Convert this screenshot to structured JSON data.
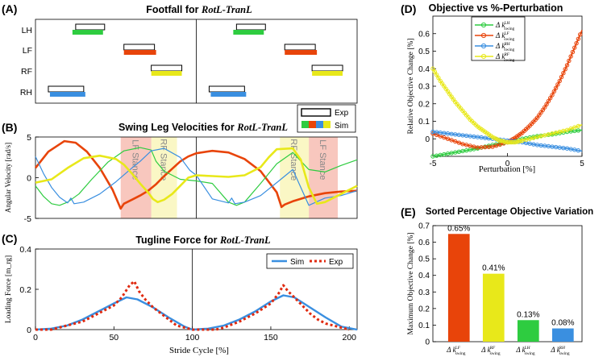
{
  "chart_data": [
    {
      "panel": "(A)",
      "type": "gantt",
      "title_prefix": "Footfall for ",
      "title_em": "RotL-TranL",
      "rows": [
        "LH",
        "LF",
        "RF",
        "RH"
      ],
      "xlim": [
        0,
        200
      ],
      "legend": [
        "Exp",
        "Sim"
      ],
      "legend_sim_colors": [
        "#2ecc40",
        "#e8440a",
        "#3a8fe0",
        "#e8e81a"
      ],
      "row_colors": {
        "LH": "#2ecc40",
        "LF": "#e8440a",
        "RF": "#e8e81a",
        "RH": "#3a8fe0"
      },
      "exp_intervals": {
        "LH": [
          [
            25,
            43
          ],
          [
            125,
            143
          ]
        ],
        "LF": [
          [
            55,
            74
          ],
          [
            155,
            174
          ]
        ],
        "RF": [
          [
            72,
            91
          ],
          [
            172,
            191
          ]
        ],
        "RH": [
          [
            8,
            30
          ],
          [
            108,
            130
          ]
        ]
      },
      "sim_intervals": {
        "LH": [
          [
            23,
            42
          ],
          [
            123,
            142
          ]
        ],
        "LF": [
          [
            55,
            75
          ],
          [
            155,
            175
          ]
        ],
        "RF": [
          [
            72,
            91
          ],
          [
            172,
            191
          ]
        ],
        "RH": [
          [
            9,
            31
          ],
          [
            109,
            131
          ]
        ]
      }
    },
    {
      "panel": "(B)",
      "type": "line",
      "title_prefix": "Swing Leg Velocities for ",
      "title_em": "RotL-TranL",
      "ylabel": "Angular Velocity [rad/s]",
      "xlim": [
        0,
        200
      ],
      "ylim": [
        -5,
        5
      ],
      "yticks": [
        -5,
        0,
        5
      ],
      "stance_labels": [
        "LF Stance",
        "RF Stance",
        "RF Stance",
        "LF Stance"
      ],
      "stance_spans": [
        [
          53,
          72
        ],
        [
          72,
          88
        ],
        [
          152,
          170
        ],
        [
          170,
          188
        ]
      ],
      "series": [
        {
          "name": "LF",
          "color": "#e8440a",
          "width": 2.6,
          "x": [
            0,
            8,
            18,
            25,
            32,
            40,
            48,
            53,
            55,
            60,
            65,
            70,
            75,
            80,
            85,
            90,
            95,
            100,
            110,
            120,
            130,
            140,
            150,
            153,
            155,
            160,
            170,
            180,
            190,
            200
          ],
          "y": [
            1.2,
            3.2,
            4.5,
            4.3,
            3.2,
            1.2,
            -1.5,
            -3.8,
            -3.2,
            -2.7,
            -2.2,
            -1.6,
            -0.8,
            0.2,
            1.1,
            2.0,
            2.6,
            3.0,
            3.3,
            3.1,
            2.3,
            0.8,
            -1.8,
            -3.6,
            -3.3,
            -2.9,
            -2.3,
            -1.9,
            -1.7,
            -1.6
          ]
        },
        {
          "name": "LH",
          "color": "#2ecc40",
          "width": 1.2,
          "x": [
            0,
            5,
            10,
            15,
            20,
            27,
            35,
            45,
            55,
            65,
            72,
            75,
            80,
            90,
            100,
            110,
            120,
            125,
            130,
            140,
            150,
            160,
            170,
            180,
            190,
            200
          ],
          "y": [
            -1.0,
            -2.3,
            -3.2,
            -3.4,
            -3.0,
            -2.0,
            -0.2,
            1.9,
            3.3,
            3.7,
            3.4,
            2.0,
            0.8,
            -0.2,
            -0.4,
            -0.7,
            -3.0,
            -3.4,
            -3.0,
            -0.7,
            1.7,
            3.1,
            1.0,
            0.7,
            1.5,
            2.2
          ]
        },
        {
          "name": "RH",
          "color": "#3a8fe0",
          "width": 1.2,
          "x": [
            0,
            5,
            10,
            15,
            20,
            22,
            24,
            30,
            40,
            50,
            60,
            65,
            72,
            80,
            90,
            96,
            100,
            110,
            120,
            122,
            124,
            130,
            140,
            150,
            160,
            170,
            180,
            190,
            200
          ],
          "y": [
            2.6,
            0.5,
            -1.2,
            -2.4,
            -3.1,
            -2.5,
            -3.2,
            -3.0,
            -2.0,
            -0.5,
            1.2,
            2.0,
            3.3,
            3.6,
            2.5,
            0.9,
            0.3,
            -2.6,
            -3.1,
            -2.5,
            -3.2,
            -3.0,
            -2.2,
            -0.6,
            1.0,
            -3.4,
            -2.5,
            -2.2,
            -1.6
          ]
        },
        {
          "name": "RF",
          "color": "#e8e81a",
          "width": 2.6,
          "x": [
            0,
            10,
            20,
            30,
            40,
            50,
            55,
            60,
            65,
            70,
            73,
            76,
            80,
            85,
            90,
            95,
            100,
            110,
            120,
            130,
            140,
            145,
            150,
            160,
            165,
            170,
            175,
            180,
            190,
            200
          ],
          "y": [
            -0.6,
            -0.2,
            1.2,
            2.4,
            2.7,
            2.3,
            1.6,
            0.5,
            -0.7,
            -1.8,
            -2.6,
            -3.0,
            -2.7,
            -2.0,
            -1.0,
            0.0,
            0.3,
            0.2,
            0.1,
            0.3,
            1.3,
            2.5,
            3.5,
            3.6,
            2.2,
            -1.2,
            -3.2,
            -3.0,
            -2.0,
            -1.0
          ]
        }
      ]
    },
    {
      "panel": "(C)",
      "type": "line",
      "title_prefix": "Tugline Force for ",
      "title_em": "RotL-TranL",
      "xlabel": "Stride Cycle  [%]",
      "ylabel": "Loading Force [m_rg]",
      "xlim": [
        0,
        205
      ],
      "ylim": [
        0,
        0.4
      ],
      "yticks": [
        0,
        0.2,
        0.4
      ],
      "xticks": [
        0,
        50,
        100,
        150,
        200
      ],
      "legend": [
        "Sim",
        "Exp"
      ],
      "series": [
        {
          "name": "Sim",
          "color": "#3a8fe0",
          "style": "solid",
          "x": [
            0,
            10,
            20,
            30,
            40,
            50,
            58,
            65,
            75,
            85,
            95,
            100,
            110,
            120,
            130,
            140,
            150,
            158,
            165,
            175,
            185,
            195,
            205
          ],
          "y": [
            0.0,
            0.005,
            0.02,
            0.05,
            0.09,
            0.13,
            0.16,
            0.15,
            0.11,
            0.06,
            0.015,
            0.0,
            0.005,
            0.02,
            0.05,
            0.09,
            0.14,
            0.17,
            0.16,
            0.11,
            0.06,
            0.015,
            0.0
          ]
        },
        {
          "name": "Exp",
          "color": "#e02a10",
          "style": "dotted",
          "x": [
            0,
            10,
            20,
            30,
            40,
            50,
            55,
            60,
            63,
            66,
            70,
            75,
            80,
            85,
            90,
            95,
            100,
            105,
            110,
            115,
            120,
            130,
            140,
            150,
            155,
            158,
            161,
            165,
            170,
            175,
            180,
            185,
            190,
            195,
            200
          ],
          "y": [
            0.0,
            0.0,
            0.02,
            0.04,
            0.08,
            0.12,
            0.16,
            0.22,
            0.24,
            0.19,
            0.15,
            0.11,
            0.08,
            0.05,
            0.02,
            0.01,
            0.0,
            0.0,
            0.0,
            0.0,
            0.01,
            0.04,
            0.08,
            0.13,
            0.18,
            0.22,
            0.19,
            0.16,
            0.12,
            0.08,
            0.05,
            0.03,
            0.02,
            0.01,
            0.0
          ]
        }
      ]
    },
    {
      "panel": "(D)",
      "type": "line",
      "title": "Objective vs %-Perturbation",
      "xlabel": "Perturbation  [%]",
      "ylabel": "Relative Objective Change [%]",
      "xlim": [
        -5,
        5
      ],
      "ylim": [
        -0.1,
        0.7
      ],
      "yticks": [
        0,
        0.1,
        0.2,
        0.3,
        0.4,
        0.5,
        0.6
      ],
      "xticks": [
        -5,
        0,
        5
      ],
      "legend": [
        "Δk LH swing",
        "Δk LF swing",
        "Δk RH swing",
        "Δk RF swing"
      ],
      "series": [
        {
          "name": "Δk LH swing",
          "color": "#2ecc40",
          "marker": "circle",
          "x": [
            -5,
            -4,
            -3,
            -2,
            -1,
            0,
            1,
            2,
            3,
            4,
            5
          ],
          "y": [
            -0.1,
            -0.085,
            -0.07,
            -0.055,
            -0.035,
            -0.02,
            0.0,
            0.015,
            0.025,
            0.04,
            0.05
          ]
        },
        {
          "name": "Δk LF swing",
          "color": "#e8440a",
          "marker": "circle",
          "x": [
            -5,
            -4,
            -3,
            -2,
            -1,
            0,
            0.5,
            1,
            1.5,
            2,
            2.5,
            3,
            3.5,
            4,
            4.5,
            5
          ],
          "y": [
            0.03,
            0.0,
            -0.03,
            -0.05,
            -0.045,
            -0.02,
            0.005,
            0.035,
            0.075,
            0.12,
            0.18,
            0.25,
            0.33,
            0.42,
            0.52,
            0.62
          ]
        },
        {
          "name": "Δk RH swing",
          "color": "#3a8fe0",
          "marker": "circle",
          "x": [
            -5,
            -4,
            -3,
            -2,
            -1,
            0,
            1,
            2,
            3,
            4,
            5
          ],
          "y": [
            0.04,
            0.03,
            0.02,
            0.01,
            0.0,
            -0.01,
            -0.02,
            -0.035,
            -0.045,
            -0.055,
            -0.07
          ]
        },
        {
          "name": "Δk RF swing",
          "color": "#e8e81a",
          "marker": "circle",
          "x": [
            -5,
            -4.5,
            -4,
            -3.5,
            -3,
            -2.5,
            -2,
            -1.5,
            -1,
            -0.5,
            0,
            0.5,
            1,
            2,
            3,
            4,
            5
          ],
          "y": [
            0.4,
            0.33,
            0.27,
            0.21,
            0.16,
            0.11,
            0.07,
            0.04,
            0.01,
            -0.01,
            -0.02,
            -0.02,
            -0.01,
            0.01,
            0.03,
            0.05,
            0.08
          ]
        }
      ]
    },
    {
      "panel": "(E)",
      "type": "bar",
      "title": "Sorted Percentage Objective Variation",
      "ylabel": "Maximum Objective Change [%]",
      "ylim": [
        0,
        0.7
      ],
      "yticks": [
        0,
        0.1,
        0.2,
        0.3,
        0.4,
        0.5,
        0.6,
        0.7
      ],
      "categories": [
        "Δk LF swing",
        "Δk RF swing",
        "Δk LH swing",
        "Δk RH swing"
      ],
      "values": [
        0.65,
        0.41,
        0.13,
        0.08
      ],
      "value_labels": [
        "0.65%",
        "0.41%",
        "0.13%",
        "0.08%"
      ],
      "colors": [
        "#e8440a",
        "#e8e81a",
        "#2ecc40",
        "#3a8fe0"
      ]
    }
  ]
}
